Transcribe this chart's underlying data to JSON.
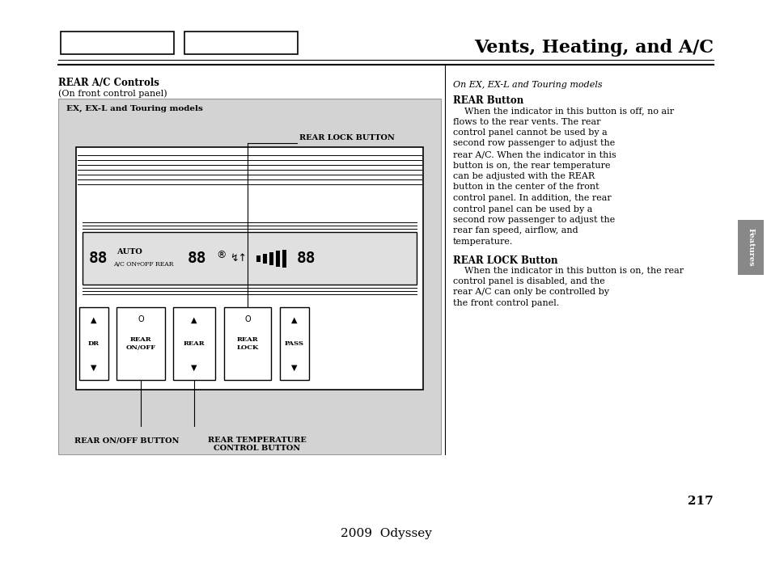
{
  "title": "Vents, Heating, and A/C",
  "page_number": "217",
  "footer": "2009  Odyssey",
  "bg_color": "#ffffff",
  "left_section_header": "REAR A/C Controls",
  "left_section_subheader": "(On front control panel)",
  "diagram_label": "EX, EX-L and Touring models",
  "diagram_bg": "#d3d3d3",
  "label_rear_lock": "REAR LOCK BUTTON",
  "label_rear_onoff": "REAR ON/OFF BUTTON",
  "label_rear_temp": "REAR TEMPERATURE\nCONTROL BUTTON",
  "right_italic": "On EX, EX-L and Touring models",
  "right_bold1": "REAR Button",
  "right_body1": "    When the indicator in this button is off, no air flows to the rear vents. The rear control panel cannot be used by a second row passenger to adjust the rear A/C. When the indicator in this button is on, the rear temperature can be adjusted with the REAR button in the center of the front control panel. In addition, the rear control panel can be used by a second row passenger to adjust the rear fan speed, airflow, and temperature.",
  "right_bold2": "REAR LOCK Button",
  "right_body2": "    When the indicator in this button is on, the rear control panel is disabled, and the rear A/C can only be controlled by the front control panel.",
  "tab_color": "#888888",
  "tab_text": "Features"
}
